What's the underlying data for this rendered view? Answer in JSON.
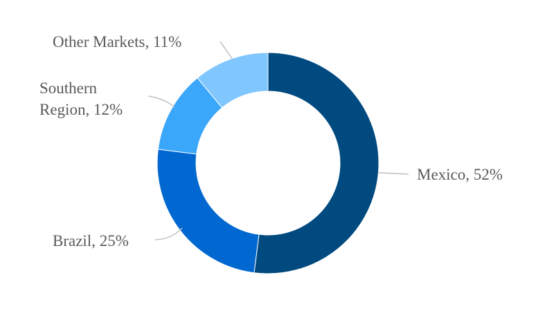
{
  "chart_data": {
    "type": "pie",
    "variant": "donut",
    "title": "",
    "slices": [
      {
        "label": "Mexico",
        "value": 52,
        "display": "Mexico, 52%",
        "color": "#004A80"
      },
      {
        "label": "Brazil",
        "value": 25,
        "display": "Brazil, 25%",
        "color": "#0068D0"
      },
      {
        "label": "Southern Region",
        "value": 12,
        "display_lines": [
          "Southern",
          "Region, 12%"
        ],
        "color": "#3BA7FA"
      },
      {
        "label": "Other Markets",
        "value": 11,
        "display": "Other Markets, 11%",
        "color": "#80C6FF"
      }
    ],
    "legend": "none",
    "start_angle": "12 o'clock",
    "direction": "clockwise",
    "label_color": "#595959",
    "leader_line_color": "#BFBFBF"
  }
}
